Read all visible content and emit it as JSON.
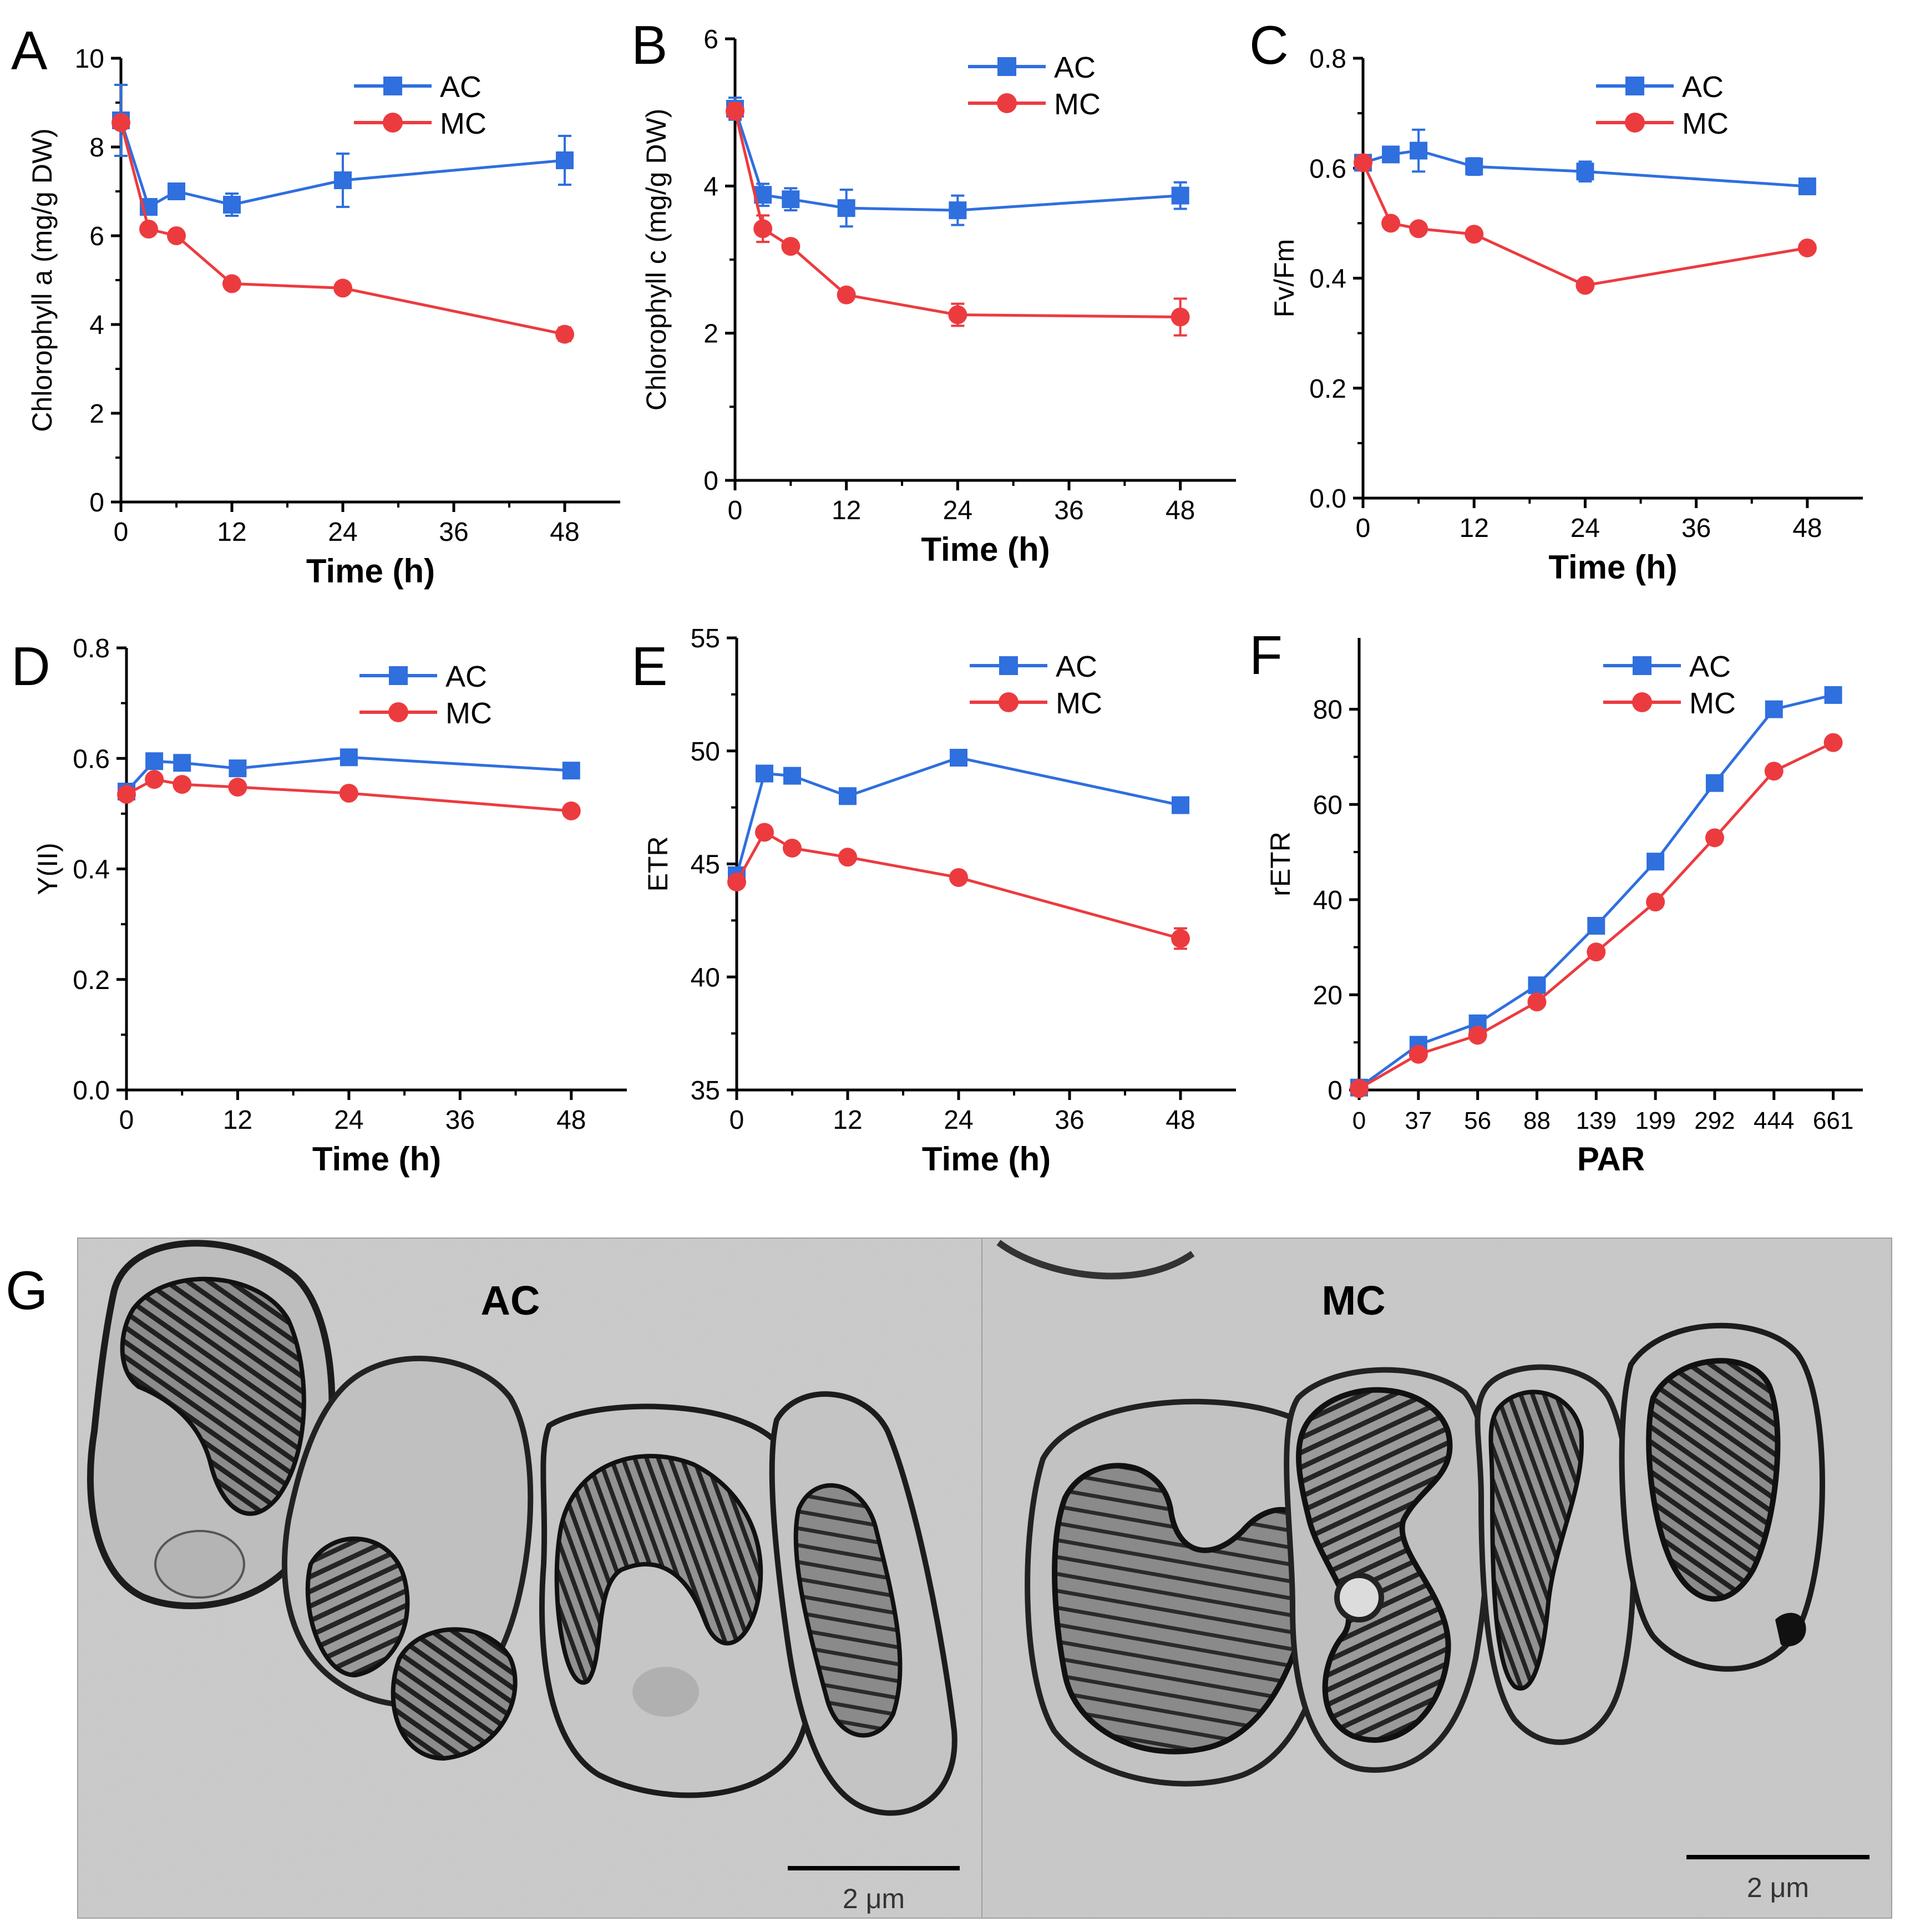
{
  "colors": {
    "ac": "#2f6fde",
    "mc": "#ec3b3f",
    "axis": "#000000"
  },
  "chart_data": [
    {
      "panel_label": "A",
      "type": "line",
      "xlabel": "Time (h)",
      "ylabel": "Chlorophyll a (mg/g DW)",
      "xlim": [
        0,
        54
      ],
      "ylim": [
        0,
        10
      ],
      "xticks": [
        0,
        12,
        24,
        36,
        48
      ],
      "yticks": [
        0,
        2,
        4,
        6,
        8,
        10
      ],
      "legend_position": "top-right",
      "series": [
        {
          "name": "AC",
          "key": "ac",
          "marker": "square",
          "x": [
            0,
            3,
            6,
            12,
            24,
            48
          ],
          "y": [
            8.6,
            6.65,
            7.0,
            6.7,
            7.25,
            7.7
          ],
          "err": [
            0.8,
            0.15,
            0.1,
            0.25,
            0.6,
            0.55
          ]
        },
        {
          "name": "MC",
          "key": "mc",
          "marker": "circle",
          "x": [
            0,
            3,
            6,
            12,
            24,
            48
          ],
          "y": [
            8.55,
            6.15,
            6.0,
            4.92,
            4.82,
            3.78
          ],
          "err": [
            0.1,
            0.1,
            0.08,
            0.1,
            0.12,
            0.15
          ]
        }
      ]
    },
    {
      "panel_label": "B",
      "type": "line",
      "xlabel": "Time (h)",
      "ylabel": "Chlorophyll c (mg/g DW)",
      "xlim": [
        0,
        54
      ],
      "ylim": [
        0,
        6
      ],
      "xticks": [
        0,
        12,
        24,
        36,
        48
      ],
      "yticks": [
        0,
        2,
        4,
        6
      ],
      "legend_position": "top-right",
      "series": [
        {
          "name": "AC",
          "key": "ac",
          "marker": "square",
          "x": [
            0,
            3,
            6,
            12,
            24,
            48
          ],
          "y": [
            5.05,
            3.88,
            3.82,
            3.7,
            3.67,
            3.87
          ],
          "err": [
            0.15,
            0.15,
            0.15,
            0.25,
            0.2,
            0.18
          ]
        },
        {
          "name": "MC",
          "key": "mc",
          "marker": "circle",
          "x": [
            0,
            3,
            6,
            12,
            24,
            48
          ],
          "y": [
            5.02,
            3.42,
            3.18,
            2.52,
            2.25,
            2.22
          ],
          "err": [
            0.1,
            0.18,
            0.08,
            0.08,
            0.15,
            0.25
          ]
        }
      ]
    },
    {
      "panel_label": "C",
      "type": "line",
      "xlabel": "Time (h)",
      "ylabel": "Fv/Fm",
      "xlim": [
        0,
        54
      ],
      "ylim": [
        0,
        0.8
      ],
      "xticks": [
        0,
        12,
        24,
        36,
        48
      ],
      "yticks": [
        0.0,
        0.2,
        0.4,
        0.6,
        0.8
      ],
      "ytick_decimals": 1,
      "legend_position": "top-right",
      "series": [
        {
          "name": "AC",
          "key": "ac",
          "marker": "square",
          "x": [
            0,
            3,
            6,
            12,
            24,
            48
          ],
          "y": [
            0.61,
            0.625,
            0.632,
            0.603,
            0.594,
            0.567
          ],
          "err": [
            0.01,
            0.012,
            0.038,
            0.015,
            0.018,
            0.01
          ]
        },
        {
          "name": "MC",
          "key": "mc",
          "marker": "circle",
          "x": [
            0,
            3,
            6,
            12,
            24,
            48
          ],
          "y": [
            0.61,
            0.5,
            0.49,
            0.48,
            0.387,
            0.455
          ],
          "err": [
            0.005,
            0.01,
            0.008,
            0.008,
            0.005,
            0.005
          ]
        }
      ]
    },
    {
      "panel_label": "D",
      "type": "line",
      "xlabel": "Time (h)",
      "ylabel": "Y(II)",
      "xlim": [
        0,
        54
      ],
      "ylim": [
        0,
        0.8
      ],
      "xticks": [
        0,
        12,
        24,
        36,
        48
      ],
      "yticks": [
        0.0,
        0.2,
        0.4,
        0.6,
        0.8
      ],
      "ytick_decimals": 1,
      "legend_position": "top-right",
      "series": [
        {
          "name": "AC",
          "key": "ac",
          "marker": "square",
          "x": [
            0,
            3,
            6,
            12,
            24,
            48
          ],
          "y": [
            0.54,
            0.595,
            0.592,
            0.582,
            0.602,
            0.578
          ],
          "err": [
            0,
            0.008,
            0.006,
            0.006,
            0.006,
            0.006
          ]
        },
        {
          "name": "MC",
          "key": "mc",
          "marker": "circle",
          "x": [
            0,
            3,
            6,
            12,
            24,
            48
          ],
          "y": [
            0.535,
            0.562,
            0.553,
            0.548,
            0.537,
            0.505
          ],
          "err": [
            0,
            0.008,
            0.005,
            0.005,
            0.005,
            0.008
          ]
        }
      ]
    },
    {
      "panel_label": "E",
      "type": "line",
      "xlabel": "Time (h)",
      "ylabel": "ETR",
      "xlim": [
        0,
        54
      ],
      "ylim": [
        35,
        55
      ],
      "xticks": [
        0,
        12,
        24,
        36,
        48
      ],
      "yticks": [
        35,
        40,
        45,
        50,
        55
      ],
      "legend_position": "top-right",
      "series": [
        {
          "name": "AC",
          "key": "ac",
          "marker": "square",
          "x": [
            0,
            3,
            6,
            12,
            24,
            48
          ],
          "y": [
            44.5,
            49.0,
            48.9,
            48.0,
            49.7,
            47.6
          ],
          "err": [
            0,
            0.2,
            0.2,
            0.2,
            0.2,
            0.2
          ]
        },
        {
          "name": "MC",
          "key": "mc",
          "marker": "circle",
          "x": [
            0,
            3,
            6,
            12,
            24,
            48
          ],
          "y": [
            44.2,
            46.4,
            45.7,
            45.3,
            44.4,
            41.7
          ],
          "err": [
            0,
            0.2,
            0.2,
            0.2,
            0.2,
            0.45
          ]
        }
      ]
    },
    {
      "panel_label": "F",
      "type": "line",
      "xlabel": "PAR",
      "ylabel": "rETR",
      "categories": [
        "0",
        "37",
        "56",
        "88",
        "139",
        "199",
        "292",
        "444",
        "661"
      ],
      "ylim": [
        0,
        95
      ],
      "yticks": [
        0,
        20,
        40,
        60,
        80
      ],
      "legend_position": "top-left",
      "series": [
        {
          "name": "AC",
          "key": "ac",
          "marker": "square",
          "values": [
            0.5,
            9.5,
            14.0,
            22.0,
            34.5,
            48.0,
            64.5,
            80.0,
            83.0
          ]
        },
        {
          "name": "MC",
          "key": "mc",
          "marker": "circle",
          "values": [
            0.3,
            7.5,
            11.5,
            18.5,
            29.0,
            39.5,
            53.0,
            67.0,
            73.0
          ]
        }
      ]
    }
  ],
  "micrograph": {
    "panel_label": "G",
    "left_label": "AC",
    "right_label": "MC",
    "left_scale": "2 μm",
    "right_scale": "2 μm"
  }
}
